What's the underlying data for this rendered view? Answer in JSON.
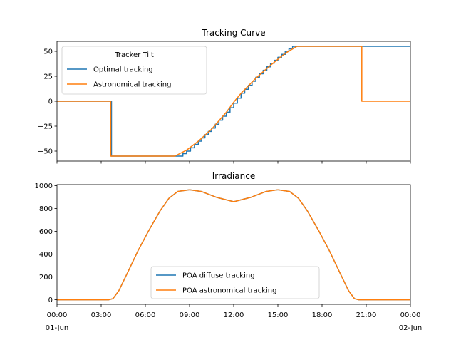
{
  "colors": {
    "blue": "#1f77b4",
    "orange": "#ff7f0e"
  },
  "chart_data": [
    {
      "type": "line",
      "title": "Tracking Curve",
      "legend_title": "Tracker Tilt",
      "legend_placement": "upper-left",
      "xlim": [
        0,
        24
      ],
      "ylim": [
        -60,
        60
      ],
      "yticks": [
        50,
        25,
        0,
        -25,
        -50
      ],
      "ytick_labels": [
        "50",
        "25",
        "0",
        "−25",
        "−50"
      ],
      "xticks": [
        0,
        3,
        6,
        9,
        12,
        15,
        18,
        21,
        24
      ],
      "series": [
        {
          "name": "Optimal tracking",
          "color": "#1f77b4",
          "step_hours": 0.25,
          "points": [
            [
              0,
              0
            ],
            [
              3.7,
              0
            ],
            [
              3.7,
              -55
            ],
            [
              8.3,
              -55
            ],
            [
              8.8,
              -50
            ],
            [
              9.6,
              -40
            ],
            [
              10.5,
              -27
            ],
            [
              11.5,
              -11
            ],
            [
              12.0,
              -2
            ],
            [
              12.5,
              8
            ],
            [
              13.5,
              24
            ],
            [
              14.5,
              38
            ],
            [
              15.5,
              50
            ],
            [
              16.0,
              55
            ],
            [
              24,
              55
            ]
          ]
        },
        {
          "name": "Astronomical tracking",
          "color": "#ff7f0e",
          "points": [
            [
              0,
              0
            ],
            [
              3.65,
              0
            ],
            [
              3.65,
              -55
            ],
            [
              8.0,
              -55
            ],
            [
              8.8,
              -49
            ],
            [
              9.6,
              -40
            ],
            [
              10.5,
              -28
            ],
            [
              11.5,
              -11
            ],
            [
              12.0,
              -1
            ],
            [
              12.5,
              8
            ],
            [
              13.5,
              23
            ],
            [
              14.5,
              36
            ],
            [
              15.5,
              48
            ],
            [
              16.3,
              55
            ],
            [
              20.7,
              55
            ],
            [
              20.7,
              0
            ],
            [
              24,
              0
            ]
          ]
        }
      ]
    },
    {
      "type": "line",
      "title": "Irradiance",
      "legend_placement": "lower-center",
      "xlim": [
        0,
        24
      ],
      "ylim": [
        -40,
        1010
      ],
      "yticks": [
        0,
        200,
        400,
        600,
        800,
        1000
      ],
      "ytick_labels": [
        "0",
        "200",
        "400",
        "600",
        "800",
        "1000"
      ],
      "xticks": [
        0,
        3,
        6,
        9,
        12,
        15,
        18,
        21,
        24
      ],
      "xtick_labels": [
        "00:00",
        "03:00",
        "06:00",
        "09:00",
        "12:00",
        "15:00",
        "18:00",
        "21:00",
        "00:00"
      ],
      "xtick_sublabels": [
        "01-Jun",
        "",
        "",
        "",
        "",
        "",
        "",
        "",
        "02-Jun"
      ],
      "series": [
        {
          "name": "POA diffuse tracking",
          "color": "#1f77b4",
          "points": [
            [
              0,
              0
            ],
            [
              3.5,
              0
            ],
            [
              3.8,
              10
            ],
            [
              4.2,
              80
            ],
            [
              4.8,
              240
            ],
            [
              5.5,
              430
            ],
            [
              6.2,
              600
            ],
            [
              7.0,
              780
            ],
            [
              7.6,
              890
            ],
            [
              8.2,
              950
            ],
            [
              9.0,
              965
            ],
            [
              9.8,
              950
            ],
            [
              10.8,
              900
            ],
            [
              12.0,
              860
            ],
            [
              13.2,
              900
            ],
            [
              14.2,
              950
            ],
            [
              15.0,
              965
            ],
            [
              15.8,
              950
            ],
            [
              16.4,
              890
            ],
            [
              17.0,
              780
            ],
            [
              17.8,
              600
            ],
            [
              18.5,
              430
            ],
            [
              19.2,
              240
            ],
            [
              19.8,
              80
            ],
            [
              20.2,
              10
            ],
            [
              20.5,
              0
            ],
            [
              24,
              0
            ]
          ]
        },
        {
          "name": "POA astronomical tracking",
          "color": "#ff7f0e",
          "points": [
            [
              0,
              0
            ],
            [
              3.5,
              0
            ],
            [
              3.8,
              10
            ],
            [
              4.2,
              80
            ],
            [
              4.8,
              240
            ],
            [
              5.5,
              430
            ],
            [
              6.2,
              600
            ],
            [
              7.0,
              780
            ],
            [
              7.6,
              890
            ],
            [
              8.2,
              950
            ],
            [
              9.0,
              965
            ],
            [
              9.8,
              950
            ],
            [
              10.8,
              900
            ],
            [
              12.0,
              860
            ],
            [
              13.2,
              900
            ],
            [
              14.2,
              950
            ],
            [
              15.0,
              965
            ],
            [
              15.8,
              950
            ],
            [
              16.4,
              890
            ],
            [
              17.0,
              780
            ],
            [
              17.8,
              600
            ],
            [
              18.5,
              430
            ],
            [
              19.2,
              240
            ],
            [
              19.8,
              80
            ],
            [
              20.2,
              10
            ],
            [
              20.5,
              0
            ],
            [
              24,
              0
            ]
          ]
        }
      ]
    }
  ]
}
